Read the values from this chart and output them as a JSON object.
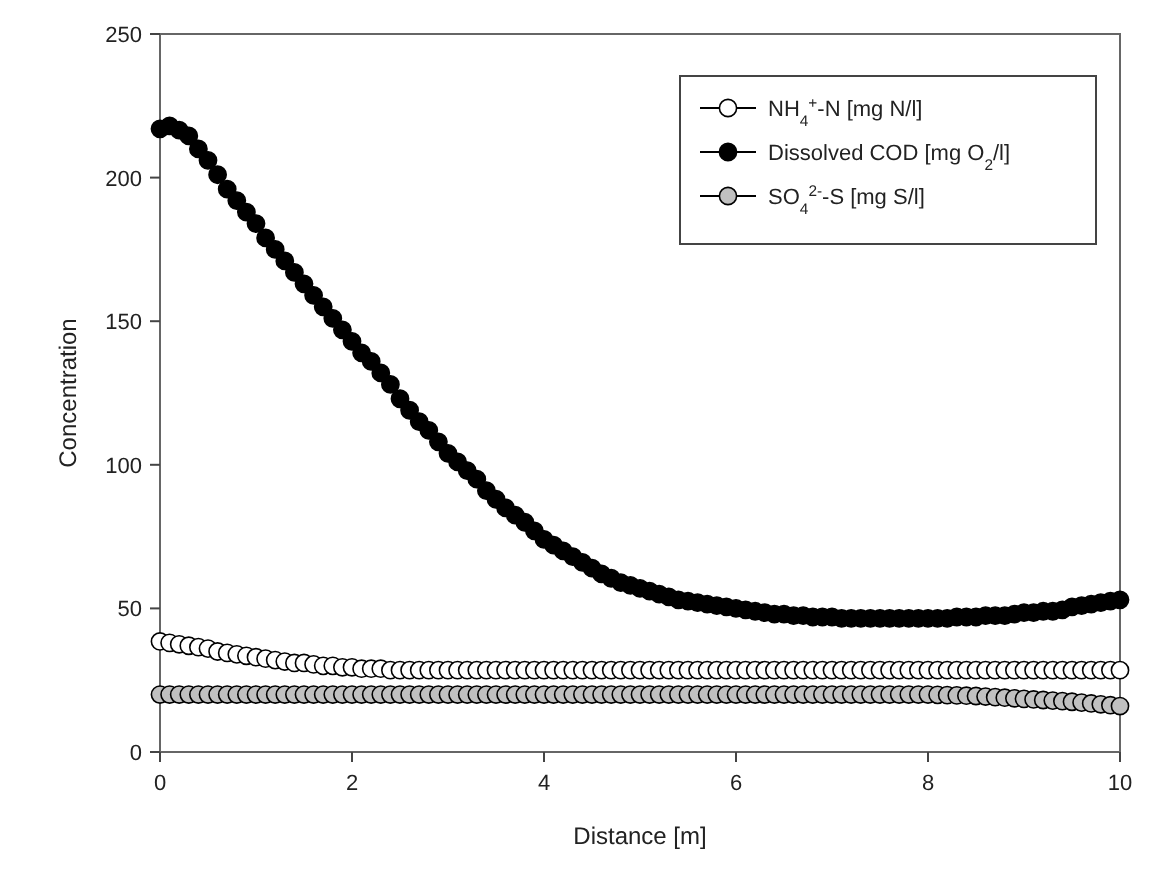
{
  "chart_data": {
    "type": "scatter",
    "xlabel": "Distance [m]",
    "ylabel": "Concentration",
    "xlim": [
      0,
      10
    ],
    "xticks": [
      0,
      2,
      4,
      6,
      8,
      10
    ],
    "ylim": [
      0,
      250
    ],
    "yticks": [
      0,
      50,
      100,
      150,
      200,
      250
    ],
    "grid": false,
    "legend": "top right",
    "marker": "circle",
    "x": [
      0,
      0.1,
      0.2,
      0.3,
      0.4,
      0.5,
      0.6,
      0.7,
      0.8,
      0.9,
      1,
      1.1,
      1.2,
      1.3,
      1.4,
      1.5,
      1.6,
      1.7,
      1.8,
      1.9,
      2,
      2.1,
      2.2,
      2.3,
      2.4,
      2.5,
      2.6,
      2.7,
      2.8,
      2.9,
      3,
      3.1,
      3.2,
      3.3,
      3.4,
      3.5,
      3.6,
      3.7,
      3.8,
      3.9,
      4,
      4.1,
      4.2,
      4.3,
      4.4,
      4.5,
      4.6,
      4.7,
      4.8,
      4.9,
      5,
      5.1,
      5.2,
      5.3,
      5.4,
      5.5,
      5.6,
      5.7,
      5.8,
      5.9,
      6,
      6.1,
      6.2,
      6.3,
      6.4,
      6.5,
      6.6,
      6.7,
      6.8,
      6.9,
      7,
      7.1,
      7.2,
      7.3,
      7.4,
      7.5,
      7.6,
      7.7,
      7.8,
      7.9,
      8,
      8.1,
      8.2,
      8.3,
      8.4,
      8.5,
      8.6,
      8.7,
      8.8,
      8.9,
      9,
      9.1,
      9.2,
      9.3,
      9.4,
      9.5,
      9.6,
      9.7,
      9.8,
      9.9,
      10
    ],
    "series": [
      {
        "name": "NH$_{4}$$^{+}$-N [mg N/l]",
        "color": "#ffffff",
        "values": [
          38.5,
          38,
          37.5,
          37,
          36.5,
          36,
          35,
          34.5,
          34,
          33.5,
          33,
          32.5,
          32,
          31.5,
          31,
          31,
          30.5,
          30,
          30,
          29.5,
          29.5,
          29,
          29,
          29,
          28.5,
          28.5,
          28.5,
          28.5,
          28.5,
          28.5,
          28.5,
          28.5,
          28.5,
          28.5,
          28.5,
          28.5,
          28.5,
          28.5,
          28.5,
          28.5,
          28.5,
          28.5,
          28.5,
          28.5,
          28.5,
          28.5,
          28.5,
          28.5,
          28.5,
          28.5,
          28.5,
          28.5,
          28.5,
          28.5,
          28.5,
          28.5,
          28.5,
          28.5,
          28.5,
          28.5,
          28.5,
          28.5,
          28.5,
          28.5,
          28.5,
          28.5,
          28.5,
          28.5,
          28.5,
          28.5,
          28.5,
          28.5,
          28.5,
          28.5,
          28.5,
          28.5,
          28.5,
          28.5,
          28.5,
          28.5,
          28.5,
          28.5,
          28.5,
          28.5,
          28.5,
          28.5,
          28.5,
          28.5,
          28.5,
          28.5,
          28.5,
          28.5,
          28.5,
          28.5,
          28.5,
          28.5,
          28.5,
          28.5,
          28.5,
          28.5,
          28.5
        ]
      },
      {
        "name": "Dissolved COD [mg O$_{2}$/l]",
        "color": "#000000",
        "values": [
          217,
          218,
          216.5,
          214.5,
          210,
          206,
          201,
          196,
          192,
          188,
          184,
          179,
          175,
          171,
          167,
          163,
          159,
          155,
          151,
          147,
          143,
          139,
          136,
          132,
          128,
          123,
          119,
          115,
          112,
          108,
          104,
          101,
          98,
          95,
          91,
          88,
          85,
          82.5,
          80,
          77,
          74,
          72,
          70,
          68,
          66,
          64,
          62,
          60.5,
          59,
          58,
          57,
          56,
          55,
          54,
          53,
          52.5,
          52,
          51.5,
          51,
          50.5,
          50,
          49.5,
          49,
          48.5,
          48,
          48,
          47.5,
          47.5,
          47,
          47,
          47,
          46.5,
          46.5,
          46.5,
          46.5,
          46.5,
          46.5,
          46.5,
          46.5,
          46.5,
          46.5,
          46.5,
          46.5,
          47,
          47,
          47,
          47.5,
          47.5,
          47.5,
          48,
          48.5,
          48.5,
          49,
          49,
          49.5,
          50.5,
          51,
          51.5,
          52,
          52.5,
          53
        ]
      },
      {
        "name": "SO$_{4}$$^{2-}$-S [mg S/l]",
        "color": "#c0c0c0",
        "values": [
          20,
          20,
          20,
          20,
          20,
          20,
          20,
          20,
          20,
          20,
          20,
          20,
          20,
          20,
          20,
          20,
          20,
          20,
          20,
          20,
          20,
          20,
          20,
          20,
          20,
          20,
          20,
          20,
          20,
          20,
          20,
          20,
          20,
          20,
          20,
          20,
          20,
          20,
          20,
          20,
          20,
          20,
          20,
          20,
          20,
          20,
          20,
          20,
          20,
          20,
          20,
          20,
          20,
          20,
          20,
          20,
          20,
          20,
          20,
          20,
          20,
          20,
          20,
          20,
          20,
          20,
          20,
          20,
          20,
          20,
          20,
          20,
          20,
          20,
          20,
          20,
          20,
          20,
          20,
          20,
          20,
          19.9,
          19.8,
          19.7,
          19.6,
          19.5,
          19.3,
          19.1,
          18.9,
          18.7,
          18.5,
          18.3,
          18.1,
          17.9,
          17.7,
          17.5,
          17.2,
          16.9,
          16.6,
          16.3,
          16
        ]
      }
    ]
  }
}
